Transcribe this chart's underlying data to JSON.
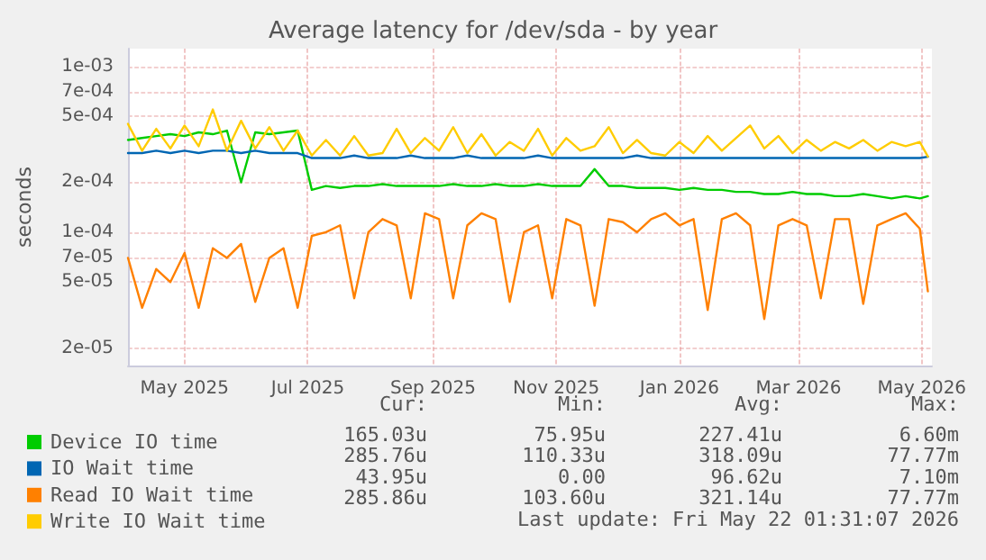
{
  "chart_data": {
    "type": "line",
    "title": "Average latency for /dev/sda - by year",
    "ylabel": "seconds",
    "log": "y",
    "grid": true,
    "legend": "bottom left",
    "marker": "none",
    "line_style": "solid",
    "xlim": [
      "2025-04-03",
      "2026-05-06"
    ],
    "ylim": [
      1.57e-05,
      0.00128
    ],
    "xticks": [
      {
        "value": "2025-05-01",
        "label": "May 2025"
      },
      {
        "value": "2025-07-01",
        "label": "Jul 2025"
      },
      {
        "value": "2025-09-01",
        "label": "Sep 2025"
      },
      {
        "value": "2025-11-01",
        "label": "Nov 2025"
      },
      {
        "value": "2026-01-01",
        "label": "Jan 2026"
      },
      {
        "value": "2026-03-01",
        "label": "Mar 2026"
      },
      {
        "value": "2026-05-01",
        "label": "May 2026"
      }
    ],
    "yticks": [
      {
        "value": 2e-05,
        "label": "2e-05"
      },
      {
        "value": 5e-05,
        "label": "5e-05"
      },
      {
        "value": 7e-05,
        "label": "7e-05"
      },
      {
        "value": 0.0001,
        "label": "1e-04"
      },
      {
        "value": 0.0002,
        "label": "2e-04"
      },
      {
        "value": 0.0005,
        "label": "5e-04"
      },
      {
        "value": 0.0007,
        "label": "7e-04"
      },
      {
        "value": 0.001,
        "label": "1e-03"
      }
    ],
    "x": [
      "2025-04-03",
      "2025-04-10",
      "2025-04-17",
      "2025-04-24",
      "2025-05-01",
      "2025-05-08",
      "2025-05-15",
      "2025-05-22",
      "2025-05-29",
      "2025-06-05",
      "2025-06-12",
      "2025-06-19",
      "2025-06-26",
      "2025-07-03",
      "2025-07-10",
      "2025-07-17",
      "2025-07-24",
      "2025-07-31",
      "2025-08-07",
      "2025-08-14",
      "2025-08-21",
      "2025-08-28",
      "2025-09-04",
      "2025-09-11",
      "2025-09-18",
      "2025-09-25",
      "2025-10-02",
      "2025-10-09",
      "2025-10-16",
      "2025-10-23",
      "2025-10-30",
      "2025-11-06",
      "2025-11-13",
      "2025-11-20",
      "2025-11-27",
      "2025-12-04",
      "2025-12-11",
      "2025-12-18",
      "2025-12-25",
      "2026-01-01",
      "2026-01-08",
      "2026-01-15",
      "2026-01-22",
      "2026-01-29",
      "2026-02-05",
      "2026-02-12",
      "2026-02-19",
      "2026-02-26",
      "2026-03-05",
      "2026-03-12",
      "2026-03-19",
      "2026-03-26",
      "2026-04-02",
      "2026-04-09",
      "2026-04-16",
      "2026-04-23",
      "2026-04-30",
      "2026-05-04"
    ],
    "series": [
      {
        "name": "Device IO time",
        "color": "#00cc00",
        "values": [
          0.00036,
          0.00037,
          0.00038,
          0.00039,
          0.00038,
          0.0004,
          0.00039,
          0.00041,
          0.0002,
          0.0004,
          0.00039,
          0.0004,
          0.00041,
          0.00018,
          0.00019,
          0.000185,
          0.00019,
          0.00019,
          0.000195,
          0.00019,
          0.00019,
          0.00019,
          0.00019,
          0.000195,
          0.00019,
          0.00019,
          0.000195,
          0.00019,
          0.00019,
          0.000195,
          0.00019,
          0.00019,
          0.00019,
          0.00024,
          0.00019,
          0.00019,
          0.000185,
          0.000185,
          0.000185,
          0.00018,
          0.000185,
          0.00018,
          0.00018,
          0.000175,
          0.000175,
          0.00017,
          0.00017,
          0.000175,
          0.00017,
          0.00017,
          0.000165,
          0.000165,
          0.00017,
          0.000165,
          0.00016,
          0.000165,
          0.00016,
          0.000165
        ]
      },
      {
        "name": "IO Wait time",
        "color": "#0066b3",
        "values": [
          0.0003,
          0.0003,
          0.00031,
          0.0003,
          0.00031,
          0.0003,
          0.00031,
          0.00031,
          0.0003,
          0.00031,
          0.0003,
          0.0003,
          0.0003,
          0.00028,
          0.00028,
          0.00028,
          0.00029,
          0.00028,
          0.00028,
          0.00028,
          0.00029,
          0.00028,
          0.00028,
          0.00028,
          0.00029,
          0.00028,
          0.00028,
          0.00028,
          0.00028,
          0.00029,
          0.00028,
          0.00028,
          0.00028,
          0.00028,
          0.00028,
          0.00028,
          0.00029,
          0.00028,
          0.00028,
          0.00028,
          0.00028,
          0.00028,
          0.00028,
          0.00028,
          0.00028,
          0.00028,
          0.00028,
          0.00028,
          0.00028,
          0.00028,
          0.00028,
          0.00028,
          0.00028,
          0.00028,
          0.00028,
          0.00028,
          0.00028,
          0.000285
        ]
      },
      {
        "name": "Read IO Wait time",
        "color": "#ff8000",
        "values": [
          7e-05,
          3.5e-05,
          6e-05,
          5e-05,
          7.5e-05,
          3.5e-05,
          8e-05,
          7e-05,
          8.5e-05,
          3.8e-05,
          7e-05,
          8e-05,
          3.5e-05,
          9.5e-05,
          0.0001,
          0.00011,
          4e-05,
          0.0001,
          0.00012,
          0.00011,
          4e-05,
          0.00013,
          0.00012,
          4e-05,
          0.00011,
          0.00013,
          0.00012,
          3.8e-05,
          0.0001,
          0.00011,
          4e-05,
          0.00012,
          0.00011,
          3.6e-05,
          0.00012,
          0.000115,
          0.0001,
          0.00012,
          0.00013,
          0.00011,
          0.00012,
          3.4e-05,
          0.00012,
          0.00013,
          0.00011,
          3e-05,
          0.00011,
          0.00012,
          0.00011,
          4e-05,
          0.00012,
          0.00012,
          3.7e-05,
          0.00011,
          0.00012,
          0.00013,
          0.000105,
          4.4e-05
        ]
      },
      {
        "name": "Write IO Wait time",
        "color": "#ffcc00",
        "values": [
          0.00045,
          0.00031,
          0.00042,
          0.00032,
          0.00044,
          0.00033,
          0.00055,
          0.00031,
          0.00047,
          0.00032,
          0.00043,
          0.00031,
          0.00041,
          0.00029,
          0.00036,
          0.00029,
          0.00038,
          0.00029,
          0.0003,
          0.00042,
          0.0003,
          0.00037,
          0.00031,
          0.00043,
          0.0003,
          0.00039,
          0.00029,
          0.00035,
          0.00031,
          0.00042,
          0.00029,
          0.00037,
          0.00031,
          0.00033,
          0.00043,
          0.0003,
          0.00036,
          0.0003,
          0.00029,
          0.00035,
          0.0003,
          0.00038,
          0.00031,
          0.00037,
          0.00044,
          0.00032,
          0.00038,
          0.0003,
          0.00036,
          0.00031,
          0.00035,
          0.00032,
          0.00036,
          0.00031,
          0.00035,
          0.00033,
          0.00035,
          0.000286
        ]
      }
    ],
    "annotations": [
      "Cur:",
      "Min:",
      "Avg:",
      "Max:",
      "165.03u",
      "75.95u",
      "227.41u",
      "6.60m",
      "285.76u",
      "110.33u",
      "318.09u",
      "77.77m",
      "43.95u",
      "0.00",
      "96.62u",
      "7.10m",
      "285.86u",
      "103.60u",
      "321.14u",
      "77.77m",
      "Last update: Fri May 22 01:31:07 2026"
    ]
  }
}
